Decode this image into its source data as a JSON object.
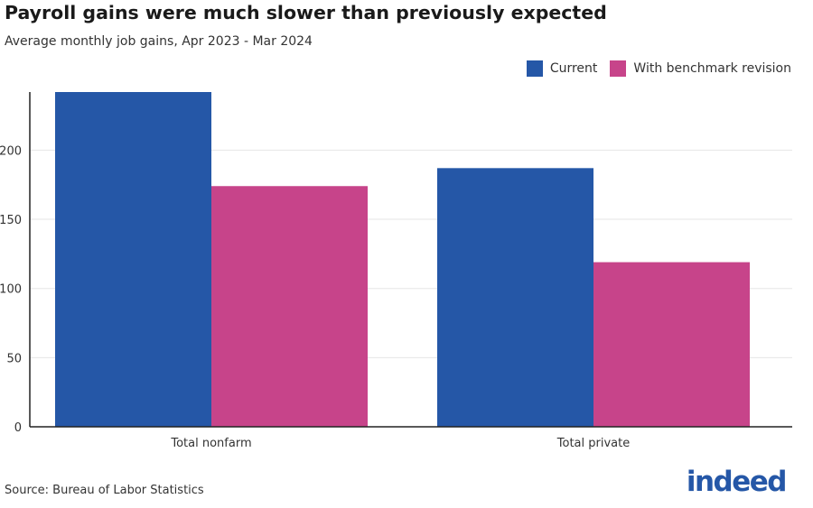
{
  "colors": {
    "current": "#2557a7",
    "revision": "#c7448a",
    "grid": "#e6e6e6",
    "axis": "#222222"
  },
  "footer": {
    "source": "Source: Bureau of Labor Statistics",
    "logo": "indeed"
  },
  "chart_data": {
    "type": "bar",
    "title": "Payroll gains were much slower than previously expected",
    "subtitle": "Average monthly job gains, Apr 2023 - Mar 2024",
    "xlabel": "",
    "ylabel": "",
    "categories": [
      "Total nonfarm",
      "Total private"
    ],
    "series": [
      {
        "name": "Current",
        "values": [
          242,
          187
        ]
      },
      {
        "name": "With benchmark revision",
        "values": [
          174,
          119
        ]
      }
    ],
    "ylim": [
      0,
      242
    ],
    "yticks": [
      0,
      50,
      100,
      150,
      200
    ],
    "grid": true,
    "legend": "top-right"
  }
}
